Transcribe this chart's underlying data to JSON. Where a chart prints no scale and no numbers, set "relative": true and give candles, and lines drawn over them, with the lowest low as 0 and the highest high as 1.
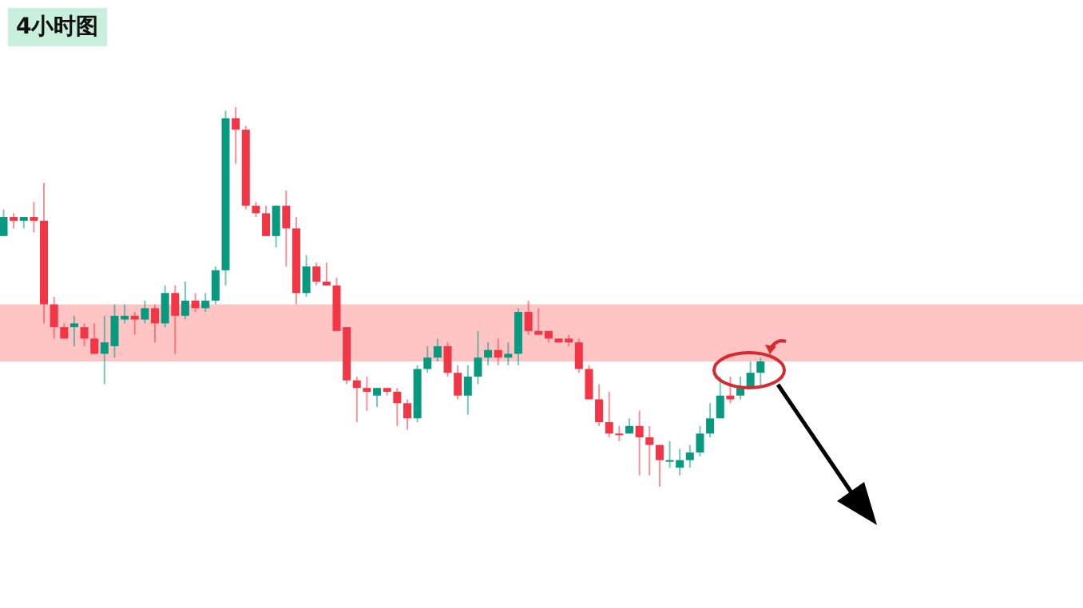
{
  "chart_data": {
    "type": "candlestick",
    "title": "4小时图",
    "relative": true,
    "tick_labels": false,
    "categories": [
      null,
      null,
      null,
      null,
      null,
      null,
      null,
      null,
      null,
      null,
      null,
      null,
      null,
      null,
      null,
      null,
      null,
      null,
      null,
      null,
      null,
      null,
      null,
      null,
      null,
      null,
      null,
      null,
      null,
      null,
      null,
      null,
      null,
      null,
      null,
      null,
      null,
      null,
      null,
      null,
      null,
      null,
      null,
      null,
      null,
      null,
      null,
      null,
      null,
      null,
      null,
      null,
      null,
      null,
      null,
      null,
      null,
      null,
      null,
      null,
      null,
      null,
      null,
      null,
      null,
      null,
      null,
      null,
      null,
      null,
      null,
      null,
      null,
      null,
      null,
      null
    ],
    "ohlc": [
      [
        0.66,
        0.73,
        0.66,
        0.71
      ],
      [
        0.71,
        0.72,
        0.68,
        0.7
      ],
      [
        0.7,
        0.71,
        0.68,
        0.71
      ],
      [
        0.71,
        0.75,
        0.67,
        0.7
      ],
      [
        0.7,
        0.8,
        0.43,
        0.48
      ],
      [
        0.48,
        0.5,
        0.39,
        0.42
      ],
      [
        0.42,
        0.43,
        0.39,
        0.39
      ],
      [
        0.42,
        0.45,
        0.37,
        0.43
      ],
      [
        0.42,
        0.43,
        0.37,
        0.39
      ],
      [
        0.39,
        0.43,
        0.35,
        0.35
      ],
      [
        0.35,
        0.45,
        0.27,
        0.38
      ],
      [
        0.37,
        0.48,
        0.34,
        0.45
      ],
      [
        0.44,
        0.48,
        0.43,
        0.45
      ],
      [
        0.45,
        0.46,
        0.4,
        0.44
      ],
      [
        0.44,
        0.49,
        0.43,
        0.47
      ],
      [
        0.47,
        0.48,
        0.38,
        0.43
      ],
      [
        0.43,
        0.53,
        0.42,
        0.51
      ],
      [
        0.51,
        0.53,
        0.35,
        0.45
      ],
      [
        0.45,
        0.54,
        0.44,
        0.49
      ],
      [
        0.49,
        0.51,
        0.46,
        0.47
      ],
      [
        0.47,
        0.51,
        0.46,
        0.49
      ],
      [
        0.49,
        0.58,
        0.48,
        0.57
      ],
      [
        0.57,
        0.99,
        0.53,
        0.97
      ],
      [
        0.97,
        1,
        0.85,
        0.94
      ],
      [
        0.94,
        0.95,
        0.73,
        0.74
      ],
      [
        0.74,
        0.75,
        0.71,
        0.72
      ],
      [
        0.72,
        0.74,
        0.66,
        0.66
      ],
      [
        0.66,
        0.74,
        0.63,
        0.74
      ],
      [
        0.74,
        0.78,
        0.58,
        0.68
      ],
      [
        0.68,
        0.71,
        0.48,
        0.51
      ],
      [
        0.51,
        0.61,
        0.5,
        0.58
      ],
      [
        0.58,
        0.59,
        0.53,
        0.54
      ],
      [
        0.54,
        0.59,
        0.53,
        0.53
      ],
      [
        0.53,
        0.55,
        0.41,
        0.41
      ],
      [
        0.42,
        0.42,
        0.27,
        0.28
      ],
      [
        0.28,
        0.29,
        0.17,
        0.26
      ],
      [
        0.26,
        0.29,
        0.2,
        0.25
      ],
      [
        0.24,
        0.26,
        0.21,
        0.26
      ],
      [
        0.26,
        0.26,
        0.24,
        0.25
      ],
      [
        0.25,
        0.26,
        0.16,
        0.22
      ],
      [
        0.22,
        0.23,
        0.15,
        0.18
      ],
      [
        0.18,
        0.32,
        0.17,
        0.31
      ],
      [
        0.31,
        0.37,
        0.3,
        0.34
      ],
      [
        0.34,
        0.39,
        0.33,
        0.37
      ],
      [
        0.37,
        0.38,
        0.29,
        0.3
      ],
      [
        0.3,
        0.32,
        0.23,
        0.24
      ],
      [
        0.24,
        0.32,
        0.19,
        0.29
      ],
      [
        0.29,
        0.41,
        0.27,
        0.34
      ],
      [
        0.34,
        0.38,
        0.32,
        0.36
      ],
      [
        0.36,
        0.39,
        0.32,
        0.34
      ],
      [
        0.34,
        0.38,
        0.32,
        0.35
      ],
      [
        0.35,
        0.47,
        0.32,
        0.46
      ],
      [
        0.46,
        0.49,
        0.4,
        0.41
      ],
      [
        0.41,
        0.47,
        0.4,
        0.4
      ],
      [
        0.41,
        0.41,
        0.38,
        0.39
      ],
      [
        0.39,
        0.39,
        0.38,
        0.38
      ],
      [
        0.39,
        0.4,
        0.37,
        0.38
      ],
      [
        0.38,
        0.39,
        0.3,
        0.31
      ],
      [
        0.31,
        0.32,
        0.23,
        0.23
      ],
      [
        0.23,
        0.27,
        0.16,
        0.17
      ],
      [
        0.17,
        0.25,
        0.13,
        0.14
      ],
      [
        0.14,
        0.16,
        0.12,
        0.14
      ],
      [
        0.14,
        0.18,
        0.14,
        0.16
      ],
      [
        0.16,
        0.2,
        0.03,
        0.13
      ],
      [
        0.13,
        0.16,
        0.03,
        0.11
      ],
      [
        0.11,
        0.11,
        0,
        0.07
      ],
      [
        0.07,
        0.12,
        0.05,
        0.07
      ],
      [
        0.05,
        0.1,
        0.03,
        0.07
      ],
      [
        0.07,
        0.11,
        0.05,
        0.09
      ],
      [
        0.09,
        0.16,
        0.08,
        0.14
      ],
      [
        0.14,
        0.22,
        0.13,
        0.18
      ],
      [
        0.18,
        0.29,
        0.18,
        0.24
      ],
      [
        0.24,
        0.29,
        0.22,
        0.23
      ],
      [
        0.24,
        0.29,
        0.23,
        0.26
      ],
      [
        0.26,
        0.33,
        0.26,
        0.3
      ],
      [
        0.3,
        0.34,
        0.26,
        0.33
      ]
    ],
    "colors": [
      "#089981",
      "#f23645",
      "#089981",
      "#f23645",
      "#f23645",
      "#f23645",
      "#f23645",
      "#089981",
      "#f23645",
      "#f23645",
      "#089981",
      "#089981",
      "#089981",
      "#f23645",
      "#089981",
      "#f23645",
      "#089981",
      "#f23645",
      "#089981",
      "#f23645",
      "#089981",
      "#089981",
      "#089981",
      "#f23645",
      "#f23645",
      "#f23645",
      "#f23645",
      "#089981",
      "#f23645",
      "#f23645",
      "#089981",
      "#f23645",
      "#f23645",
      "#f23645",
      "#f23645",
      "#f23645",
      "#f23645",
      "#089981",
      "#f23645",
      "#f23645",
      "#f23645",
      "#089981",
      "#089981",
      "#089981",
      "#f23645",
      "#f23645",
      "#089981",
      "#089981",
      "#089981",
      "#f23645",
      "#089981",
      "#089981",
      "#f23645",
      "#f23645",
      "#f23645",
      "#f23645",
      "#f23645",
      "#f23645",
      "#f23645",
      "#f23645",
      "#f23645",
      "#f23645",
      "#089981",
      "#f23645",
      "#f23645",
      "#f23645",
      "#089981",
      "#089981",
      "#089981",
      "#089981",
      "#089981",
      "#089981",
      "#f23645",
      "#089981",
      "#089981",
      "#089981"
    ],
    "bands": [
      {
        "axis": "y",
        "from": 0.33,
        "to": 0.48,
        "color": "#ffc4c4"
      }
    ]
  }
}
